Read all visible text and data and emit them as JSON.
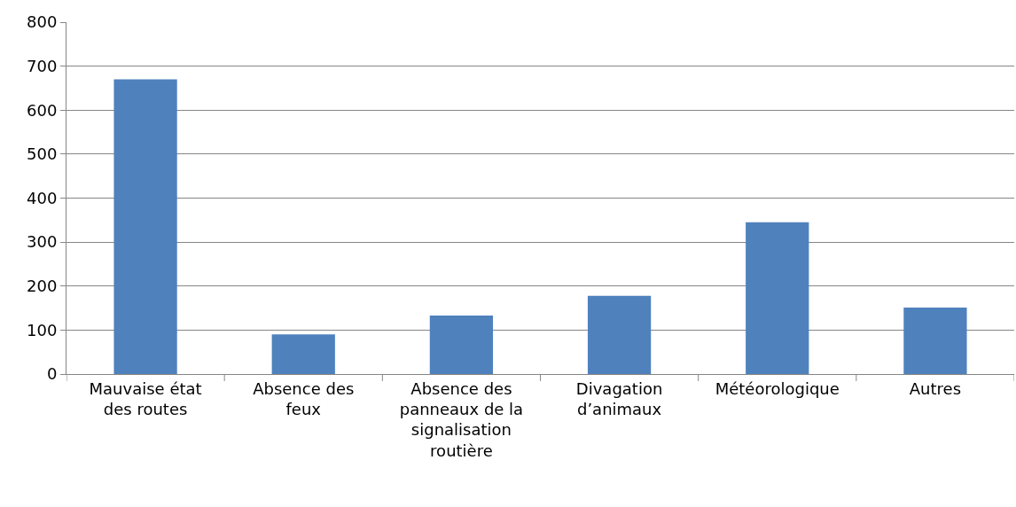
{
  "chart_data": {
    "type": "bar",
    "categories": [
      "Mauvaise état des routes",
      "Absence des feux",
      "Absence des panneaux de la signalisation routière",
      "Divagation d’animaux",
      "Météorologique",
      "Autres"
    ],
    "values": [
      670,
      90,
      133,
      178,
      345,
      151
    ],
    "color": "#4f81bd",
    "ylim": [
      0,
      800
    ],
    "yticks": [
      0,
      100,
      200,
      300,
      400,
      500,
      600,
      700,
      800
    ],
    "grid": "y"
  }
}
